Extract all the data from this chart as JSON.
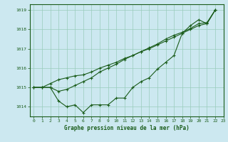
{
  "title": "Graphe pression niveau de la mer (hPa)",
  "background_color": "#cce8f0",
  "grid_color": "#99ccbb",
  "line_color": "#1a5c1a",
  "ylabel_values": [
    1014,
    1015,
    1016,
    1017,
    1018,
    1019
  ],
  "xlim": [
    -0.5,
    23
  ],
  "ylim": [
    1013.5,
    1019.3
  ],
  "series1": [
    1015.0,
    1015.0,
    1015.0,
    1014.3,
    1014.0,
    1014.1,
    1013.7,
    1014.1,
    1014.1,
    1014.1,
    1014.45,
    1014.45,
    1015.0,
    1015.3,
    1015.5,
    1015.95,
    1016.3,
    1016.65,
    1017.8,
    1018.2,
    1018.5,
    1018.3,
    1019.0
  ],
  "series2": [
    1015.0,
    1015.0,
    1015.2,
    1015.4,
    1015.5,
    1015.6,
    1015.65,
    1015.8,
    1016.0,
    1016.15,
    1016.3,
    1016.5,
    1016.65,
    1016.85,
    1017.0,
    1017.2,
    1017.4,
    1017.6,
    1017.8,
    1018.0,
    1018.2,
    1018.3,
    1019.0
  ],
  "series3": [
    1015.0,
    1015.0,
    1015.0,
    1014.8,
    1014.9,
    1015.1,
    1015.3,
    1015.5,
    1015.8,
    1016.0,
    1016.2,
    1016.45,
    1016.65,
    1016.85,
    1017.05,
    1017.25,
    1017.5,
    1017.7,
    1017.85,
    1018.05,
    1018.3,
    1018.35,
    1019.0
  ]
}
